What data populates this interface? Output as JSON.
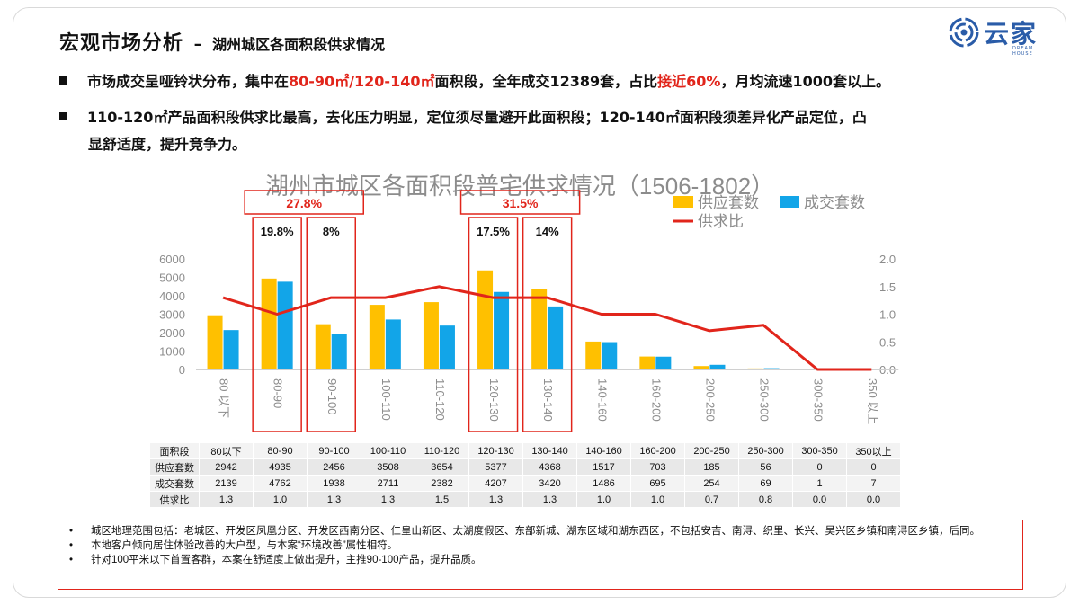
{
  "header": {
    "title": "宏观市场分析",
    "separator": "–",
    "subtitle": "湖州城区各面积段供求情况"
  },
  "logo": {
    "text": "云家",
    "sub": "DREAM HOUSE",
    "color": "#2a5ca8"
  },
  "bullets": [
    {
      "parts": [
        {
          "text": "市场成交呈哑铃状分布，集中在",
          "red": false
        },
        {
          "text": "80-90㎡/120-140㎡",
          "red": true
        },
        {
          "text": "面积段，全年成交12389套，占比",
          "red": false
        },
        {
          "text": "接近60%",
          "red": true
        },
        {
          "text": "，月均流速1000套以上。",
          "red": false
        }
      ]
    },
    {
      "line1": "110-120㎡产品面积段供求比最高，去化压力明显，定位须尽量避开此面积段；120-140㎡面积段须差异化产品定位，凸",
      "line2": "显舒适度，提升竞争力。"
    }
  ],
  "chart_data": {
    "type": "bar",
    "title": "湖州市城区各面积段普宅供求情况（1506-1802）",
    "categories": [
      "80 以下",
      "80-90",
      "90-100",
      "100-110",
      "110-120",
      "120-130",
      "130-140",
      "140-160",
      "160-200",
      "200-250",
      "250-300",
      "300-350",
      "350 以上"
    ],
    "series": [
      {
        "name": "供应套数",
        "type": "bar",
        "axis": "left",
        "color": "#ffc000",
        "values": [
          2942,
          4935,
          2456,
          3508,
          3654,
          5377,
          4368,
          1517,
          703,
          185,
          56,
          0,
          0
        ]
      },
      {
        "name": "成交套数",
        "type": "bar",
        "axis": "left",
        "color": "#12a5e8",
        "values": [
          2139,
          4762,
          1938,
          2711,
          2382,
          4207,
          3420,
          1486,
          695,
          254,
          69,
          1,
          7
        ]
      },
      {
        "name": "供求比",
        "type": "line",
        "axis": "right",
        "color": "#e1251b",
        "values": [
          1.3,
          1.0,
          1.3,
          1.3,
          1.5,
          1.3,
          1.3,
          1.0,
          1.0,
          0.7,
          0.8,
          0.0,
          0.0
        ]
      }
    ],
    "left_axis": {
      "min": 0,
      "max": 6000,
      "ticks": [
        "0",
        "1000",
        "2000",
        "3000",
        "4000",
        "5000",
        "6000"
      ]
    },
    "right_axis": {
      "min": 0,
      "max": 2.0,
      "ticks": [
        "0.0",
        "0.5",
        "1.0",
        "1.5",
        "2.0"
      ]
    },
    "legend": "top-right",
    "grid": false,
    "annotations": {
      "group_labels": [
        "27.8%",
        "31.5%"
      ],
      "highlight_labels": [
        "19.8%",
        "8%",
        "17.5%",
        "14%"
      ]
    },
    "annotation_color": "#e1251b"
  },
  "table": {
    "header": [
      "面积段",
      "80以下",
      "80-90",
      "90-100",
      "100-110",
      "110-120",
      "120-130",
      "130-140",
      "140-160",
      "160-200",
      "200-250",
      "250-300",
      "300-350",
      "350以上"
    ],
    "rows": [
      [
        "供应套数",
        "2942",
        "4935",
        "2456",
        "3508",
        "3654",
        "5377",
        "4368",
        "1517",
        "703",
        "185",
        "56",
        "0",
        "0"
      ],
      [
        "成交套数",
        "2139",
        "4762",
        "1938",
        "2711",
        "2382",
        "4207",
        "3420",
        "1486",
        "695",
        "254",
        "69",
        "1",
        "7"
      ],
      [
        "供求比",
        "1.3",
        "1.0",
        "1.3",
        "1.3",
        "1.5",
        "1.3",
        "1.3",
        "1.0",
        "1.0",
        "0.7",
        "0.8",
        "0.0",
        "0.0"
      ]
    ]
  },
  "notes": [
    "城区地理范围包括：老城区、开发区凤凰分区、开发区西南分区、仁皇山新区、太湖度假区、东部新城、湖东区域和湖东西区，不包括安吉、南浔、织里、长兴、吴兴区乡镇和南浔区乡镇，后同。",
    "本地客户倾向居住体验改善的大户型，与本案“环境改善”属性相符。",
    "针对100平米以下首置客群，本案在舒适度上做出提升，主推90-100产品，提升品质。"
  ]
}
